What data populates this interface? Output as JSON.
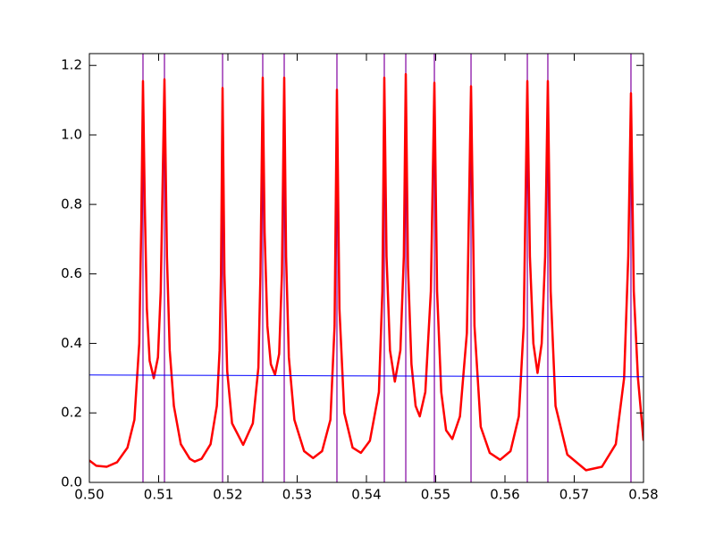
{
  "chart_data": {
    "type": "line",
    "xlim": [
      0.5,
      0.58
    ],
    "ylim": [
      0,
      1.234
    ],
    "xticks": [
      {
        "value": 0.5,
        "label": "0.50"
      },
      0.51,
      0.52,
      0.53,
      0.54,
      0.55,
      0.56,
      0.57,
      0.58
    ],
    "yticks": [
      {
        "value": 0,
        "label": "0.0"
      },
      0.2,
      0.4,
      0.6,
      0.8,
      {
        "value": 1,
        "label": "1.0"
      },
      1.2
    ],
    "series": [
      {
        "color": "#ff0000",
        "x": [
          0.5,
          0.501,
          0.5025,
          0.504,
          0.5055,
          0.5065,
          0.5072,
          0.5075,
          0.50774,
          0.508,
          0.5083,
          0.5087,
          0.5093,
          0.5099,
          0.5103,
          0.51084,
          0.5112,
          0.5116,
          0.5122,
          0.5132,
          0.5145,
          0.5152,
          0.5162,
          0.5175,
          0.5184,
          0.5188,
          0.519,
          0.51923,
          0.5195,
          0.5199,
          0.5206,
          0.5222,
          0.5236,
          0.5244,
          0.5247,
          0.52503,
          0.5253,
          0.5257,
          0.5262,
          0.5268,
          0.5274,
          0.5278,
          0.52813,
          0.5284,
          0.5288,
          0.5296,
          0.531,
          0.5323,
          0.5336,
          0.5348,
          0.5354,
          0.53574,
          0.5361,
          0.5368,
          0.538,
          0.5392,
          0.5405,
          0.5418,
          0.5423,
          0.54258,
          0.5429,
          0.5434,
          0.5441,
          0.5449,
          0.5454,
          0.54568,
          0.546,
          0.5465,
          0.5471,
          0.5477,
          0.5485,
          0.5493,
          0.54981,
          0.5502,
          0.5508,
          0.5515,
          0.5524,
          0.5535,
          0.5545,
          0.5551,
          0.5556,
          0.5565,
          0.5578,
          0.5593,
          0.5608,
          0.562,
          0.5627,
          0.56323,
          0.5636,
          0.5641,
          0.5647,
          0.5653,
          0.5658,
          0.56619,
          0.5666,
          0.5673,
          0.569,
          0.5717,
          0.574,
          0.576,
          0.5772,
          0.5778,
          0.57819,
          0.5786,
          0.5792,
          0.58
        ],
        "values": [
          0.063,
          0.048,
          0.045,
          0.058,
          0.1,
          0.18,
          0.4,
          0.75,
          1.155,
          0.8,
          0.5,
          0.35,
          0.3,
          0.36,
          0.55,
          1.16,
          0.65,
          0.38,
          0.22,
          0.11,
          0.068,
          0.06,
          0.068,
          0.11,
          0.22,
          0.38,
          0.6,
          1.135,
          0.6,
          0.32,
          0.17,
          0.108,
          0.17,
          0.33,
          0.6,
          1.165,
          0.72,
          0.45,
          0.34,
          0.31,
          0.37,
          0.6,
          1.165,
          0.65,
          0.36,
          0.18,
          0.09,
          0.07,
          0.09,
          0.18,
          0.45,
          1.13,
          0.5,
          0.2,
          0.1,
          0.085,
          0.12,
          0.26,
          0.55,
          1.165,
          0.65,
          0.38,
          0.29,
          0.38,
          0.65,
          1.175,
          0.62,
          0.34,
          0.22,
          0.19,
          0.26,
          0.55,
          1.15,
          0.55,
          0.26,
          0.15,
          0.125,
          0.19,
          0.43,
          1.14,
          0.45,
          0.16,
          0.085,
          0.065,
          0.09,
          0.19,
          0.45,
          1.155,
          0.65,
          0.4,
          0.315,
          0.4,
          0.65,
          1.155,
          0.55,
          0.22,
          0.08,
          0.035,
          0.045,
          0.11,
          0.3,
          0.65,
          1.12,
          0.55,
          0.3,
          0.12
        ],
        "width": 2.5
      },
      {
        "color": "#0000ff",
        "x": [
          0.5,
          0.58
        ],
        "values": [
          0.309,
          0.304
        ],
        "width": 1
      }
    ],
    "vlines": [
      0.50774,
      0.51084,
      0.51923,
      0.52503,
      0.52813,
      0.53574,
      0.54258,
      0.54568,
      0.54981,
      0.5551,
      0.56323,
      0.56619,
      0.57819
    ],
    "vline_color": "#8000a0"
  }
}
